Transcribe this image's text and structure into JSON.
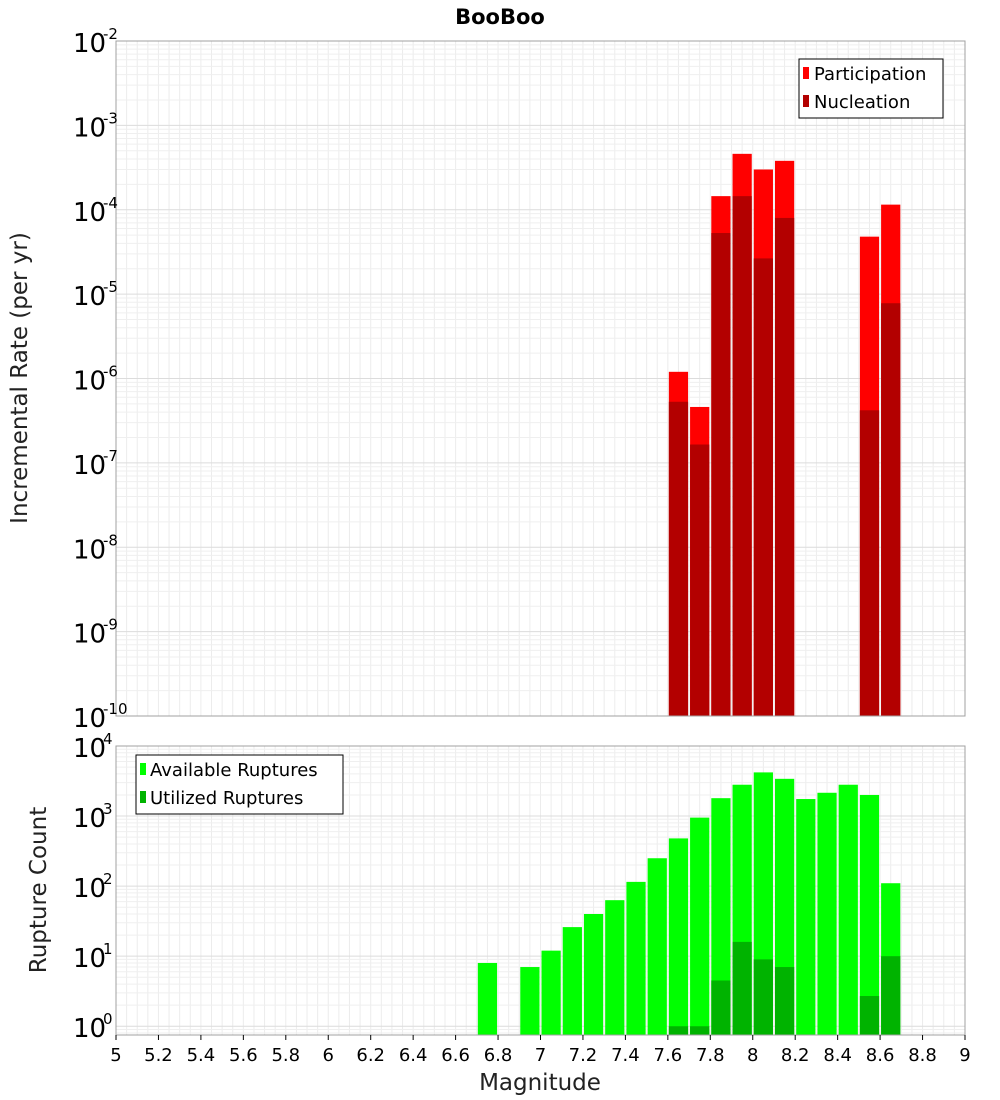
{
  "chart_data": [
    {
      "type": "bar",
      "title": "BooBoo",
      "xlabel": "",
      "ylabel": "Incremental Rate (per yr)",
      "yscale": "log",
      "xlim": [
        5,
        9
      ],
      "ylim": [
        1e-10,
        0.01
      ],
      "grid": true,
      "legend": "top-right",
      "bin_width": 0.1,
      "overlay": true,
      "series": [
        {
          "name": "Participation",
          "color": "#ff0000",
          "x": [
            7.65,
            7.75,
            7.85,
            7.95,
            8.05,
            8.15,
            8.55,
            8.65
          ],
          "values": [
            1.2e-06,
            4.6e-07,
            0.000145,
            0.00046,
            0.0003,
            0.00038,
            4.8e-05,
            0.000115
          ]
        },
        {
          "name": "Nucleation",
          "color": "#b30000",
          "x": [
            7.65,
            7.75,
            7.85,
            7.95,
            8.05,
            8.15,
            8.55,
            8.65
          ],
          "values": [
            5.3e-07,
            1.65e-07,
            5.3e-05,
            0.000145,
            2.65e-05,
            8e-05,
            4.2e-07,
            7.8e-06
          ]
        }
      ]
    },
    {
      "type": "bar",
      "title": "",
      "xlabel": "Magnitude",
      "ylabel": "Rupture Count",
      "yscale": "log",
      "xlim": [
        5,
        9
      ],
      "ylim": [
        0.75,
        10000
      ],
      "grid": true,
      "legend": "top-left",
      "bin_width": 0.1,
      "overlay": true,
      "series": [
        {
          "name": "Available Ruptures",
          "color": "#00ff00",
          "x": [
            6.75,
            6.95,
            7.05,
            7.15,
            7.25,
            7.35,
            7.45,
            7.55,
            7.65,
            7.75,
            7.85,
            7.95,
            8.05,
            8.15,
            8.25,
            8.35,
            8.45,
            8.55,
            8.65
          ],
          "values": [
            8,
            7,
            12,
            26,
            40,
            63,
            115,
            250,
            480,
            950,
            1800,
            2800,
            4200,
            3400,
            1750,
            2150,
            2800,
            2000,
            110
          ]
        },
        {
          "name": "Utilized Ruptures",
          "color": "#00b300",
          "x": [
            7.65,
            7.75,
            7.85,
            7.95,
            8.05,
            8.15,
            8.55,
            8.65
          ],
          "values": [
            1,
            1,
            4.5,
            16,
            9,
            7,
            2.7,
            10
          ]
        }
      ]
    }
  ],
  "axes": {
    "x_ticks": [
      "5",
      "5.2",
      "5.4",
      "5.6",
      "5.8",
      "6",
      "6.2",
      "6.4",
      "6.6",
      "6.8",
      "7",
      "7.2",
      "7.4",
      "7.6",
      "7.8",
      "8",
      "8.2",
      "8.4",
      "8.6",
      "8.8",
      "9"
    ],
    "top_y_exponents": [
      "-2",
      "-3",
      "-4",
      "-5",
      "-6",
      "-7",
      "-8",
      "-9",
      "-10"
    ],
    "bottom_y_exponents": [
      "4",
      "3",
      "2",
      "1",
      "0"
    ],
    "y_tick_base": "10"
  }
}
